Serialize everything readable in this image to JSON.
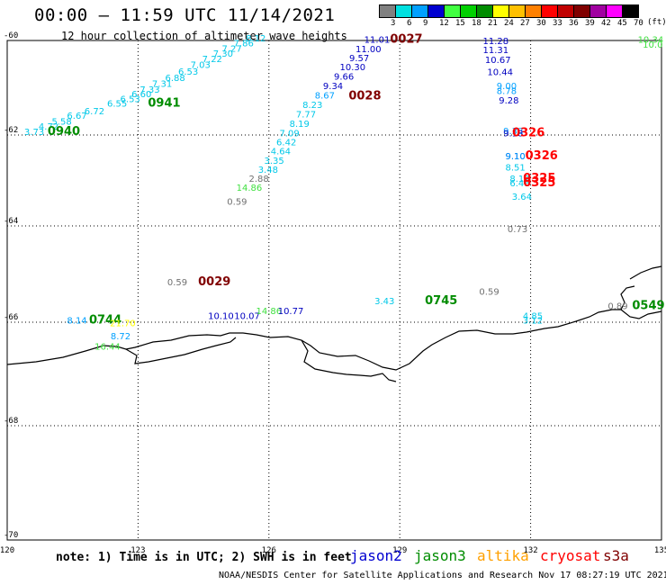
{
  "header": {
    "title": "00:00 – 11:59 UTC 11/14/2021",
    "subtitle": "12 hour collection of altimeter wave heights"
  },
  "legend": {
    "unit": "(ft)",
    "stops": [
      {
        "label": "3",
        "color": "#808080"
      },
      {
        "label": "6",
        "color": "#00e0e0"
      },
      {
        "label": "9",
        "color": "#00a0ff"
      },
      {
        "label": "12",
        "color": "#0000d0"
      },
      {
        "label": "15",
        "color": "#40ff40"
      },
      {
        "label": "18",
        "color": "#00d000"
      },
      {
        "label": "21",
        "color": "#008c00"
      },
      {
        "label": "24",
        "color": "#ffff00"
      },
      {
        "label": "27",
        "color": "#ffc000"
      },
      {
        "label": "30",
        "color": "#ff8000"
      },
      {
        "label": "33",
        "color": "#ff0000"
      },
      {
        "label": "36",
        "color": "#c00000"
      },
      {
        "label": "39",
        "color": "#800000"
      },
      {
        "label": "42",
        "color": "#a000a0"
      },
      {
        "label": "45",
        "color": "#ff00ff"
      },
      {
        "label": "70",
        "color": "#000000"
      }
    ]
  },
  "axes": {
    "lat_labels": [
      {
        "value": "-60",
        "lat": -60
      },
      {
        "value": "-62",
        "lat": -62
      },
      {
        "value": "-64",
        "lat": -64
      },
      {
        "value": "-66",
        "lat": -66
      },
      {
        "value": "-68",
        "lat": -68
      },
      {
        "value": "-70",
        "lat": -70
      }
    ],
    "lon_labels": [
      {
        "value": "120",
        "lon": 120
      },
      {
        "value": "123",
        "lon": 123
      },
      {
        "value": "126",
        "lon": 126
      },
      {
        "value": "129",
        "lon": 129
      },
      {
        "value": "132",
        "lon": 132
      },
      {
        "value": "135",
        "lon": 135
      }
    ]
  },
  "observations": [
    {
      "text": "8.12",
      "lon": 125.7,
      "lat": -60.02,
      "color": "#00c8e8"
    },
    {
      "text": "7.86",
      "lon": 125.42,
      "lat": -60.12,
      "color": "#00c8e8"
    },
    {
      "text": "7.27",
      "lon": 125.15,
      "lat": -60.24,
      "color": "#00c8e8"
    },
    {
      "text": "7.30",
      "lon": 124.95,
      "lat": -60.34,
      "color": "#00c8e8"
    },
    {
      "text": "7.22",
      "lon": 124.7,
      "lat": -60.46,
      "color": "#00c8e8"
    },
    {
      "text": "7.03",
      "lon": 124.43,
      "lat": -60.58,
      "color": "#00c8e8"
    },
    {
      "text": "6.53",
      "lon": 124.15,
      "lat": -60.72,
      "color": "#00c8e8"
    },
    {
      "text": "6.88",
      "lon": 123.85,
      "lat": -60.86,
      "color": "#00c8e8"
    },
    {
      "text": "7.31",
      "lon": 123.55,
      "lat": -60.98,
      "color": "#00c8e8"
    },
    {
      "text": "7.33",
      "lon": 123.27,
      "lat": -61.1,
      "color": "#00c8e8"
    },
    {
      "text": "6.60",
      "lon": 123.08,
      "lat": -61.2,
      "color": "#00c8e8"
    },
    {
      "text": "6.53",
      "lon": 122.82,
      "lat": -61.3,
      "color": "#00c8e8"
    },
    {
      "text": "6.55",
      "lon": 122.52,
      "lat": -61.4,
      "color": "#00c8e8"
    },
    {
      "text": "6.72",
      "lon": 122.0,
      "lat": -61.56,
      "color": "#00c8e8"
    },
    {
      "text": "6.67",
      "lon": 121.6,
      "lat": -61.66,
      "color": "#00c8e8"
    },
    {
      "text": "5.58",
      "lon": 121.25,
      "lat": -61.78,
      "color": "#00c8e8"
    },
    {
      "text": "4.72",
      "lon": 120.95,
      "lat": -61.89,
      "color": "#00c8e8"
    },
    {
      "text": "3.73",
      "lon": 120.62,
      "lat": -62.0,
      "color": "#00c8e8"
    },
    {
      "text": "0941",
      "lon": 123.6,
      "lat": -61.4,
      "color": "#008c00",
      "bold": true,
      "size": 13
    },
    {
      "text": "0940",
      "lon": 121.3,
      "lat": -62.0,
      "color": "#008c00",
      "bold": true,
      "size": 13
    },
    {
      "text": "11.01",
      "lon": 128.48,
      "lat": -60.05,
      "color": "#0000c0"
    },
    {
      "text": "11.00",
      "lon": 128.28,
      "lat": -60.25,
      "color": "#0000c0"
    },
    {
      "text": "9.57",
      "lon": 128.07,
      "lat": -60.44,
      "color": "#0000c0"
    },
    {
      "text": "10.30",
      "lon": 127.92,
      "lat": -60.63,
      "color": "#0000c0"
    },
    {
      "text": "9.66",
      "lon": 127.72,
      "lat": -60.83,
      "color": "#0000c0"
    },
    {
      "text": "9.34",
      "lon": 127.47,
      "lat": -61.03,
      "color": "#0000c0"
    },
    {
      "text": "8.67",
      "lon": 127.28,
      "lat": -61.23,
      "color": "#00a0ff"
    },
    {
      "text": "8.23",
      "lon": 127.0,
      "lat": -61.43,
      "color": "#00c8e8"
    },
    {
      "text": "7.77",
      "lon": 126.85,
      "lat": -61.63,
      "color": "#00c8e8"
    },
    {
      "text": "8.19",
      "lon": 126.7,
      "lat": -61.83,
      "color": "#00c8e8"
    },
    {
      "text": "7.09",
      "lon": 126.47,
      "lat": -62.03,
      "color": "#00c8e8"
    },
    {
      "text": "6.42",
      "lon": 126.4,
      "lat": -62.23,
      "color": "#00c8e8"
    },
    {
      "text": "4.64",
      "lon": 126.27,
      "lat": -62.43,
      "color": "#00c8e8"
    },
    {
      "text": "3.35",
      "lon": 126.12,
      "lat": -62.63,
      "color": "#00c8e8"
    },
    {
      "text": "3.48",
      "lon": 125.98,
      "lat": -62.83,
      "color": "#00c8e8"
    },
    {
      "text": "2.88",
      "lon": 125.77,
      "lat": -63.03,
      "color": "#707070"
    },
    {
      "text": "14.86",
      "lon": 125.55,
      "lat": -63.23,
      "color": "#40e040"
    },
    {
      "text": "0.59",
      "lon": 125.27,
      "lat": -63.53,
      "color": "#707070"
    },
    {
      "text": "0027",
      "lon": 129.15,
      "lat": -60.05,
      "color": "#800000",
      "bold": true,
      "size": 13
    },
    {
      "text": "0028",
      "lon": 128.2,
      "lat": -61.25,
      "color": "#800000",
      "bold": true,
      "size": 13
    },
    {
      "text": "11.28",
      "lon": 131.2,
      "lat": -60.08,
      "color": "#0000c0"
    },
    {
      "text": "11.31",
      "lon": 131.2,
      "lat": -60.27,
      "color": "#0000c0"
    },
    {
      "text": "10.67",
      "lon": 131.25,
      "lat": -60.48,
      "color": "#0000c0"
    },
    {
      "text": "10.44",
      "lon": 131.3,
      "lat": -60.73,
      "color": "#0000c0"
    },
    {
      "text": "9.00",
      "lon": 131.45,
      "lat": -61.03,
      "color": "#00a0ff"
    },
    {
      "text": "8.78",
      "lon": 131.45,
      "lat": -61.13,
      "color": "#00a0ff"
    },
    {
      "text": "9.28",
      "lon": 131.5,
      "lat": -61.33,
      "color": "#0000c0"
    },
    {
      "text": "9.38",
      "lon": 131.6,
      "lat": -61.98,
      "color": "#00a0ff"
    },
    {
      "text": "9.18",
      "lon": 131.6,
      "lat": -62.03,
      "color": "#0000c0"
    },
    {
      "text": "9.10",
      "lon": 131.65,
      "lat": -62.53,
      "color": "#0000c0"
    },
    {
      "text": "9.10",
      "lon": 131.65,
      "lat": -62.53,
      "color": "#00a0ff"
    },
    {
      "text": "8.51",
      "lon": 131.65,
      "lat": -62.78,
      "color": "#00c8e8"
    },
    {
      "text": "8.12",
      "lon": 131.75,
      "lat": -63.03,
      "color": "#00c8e8"
    },
    {
      "text": "6.48",
      "lon": 131.75,
      "lat": -63.13,
      "color": "#00c8e8"
    },
    {
      "text": "3.64",
      "lon": 131.8,
      "lat": -63.43,
      "color": "#00c8e8"
    },
    {
      "text": "0.73",
      "lon": 131.7,
      "lat": -64.13,
      "color": "#707070"
    },
    {
      "text": "0326",
      "lon": 131.95,
      "lat": -62.03,
      "color": "#ff0000",
      "bold": true,
      "size": 13
    },
    {
      "text": "0326",
      "lon": 132.25,
      "lat": -62.53,
      "color": "#ff0000",
      "bold": true,
      "size": 13
    },
    {
      "text": "0325",
      "lon": 132.2,
      "lat": -63.03,
      "color": "#ff0000",
      "bold": true,
      "size": 13
    },
    {
      "text": "0325",
      "lon": 132.2,
      "lat": -63.13,
      "color": "#ff0000",
      "bold": true,
      "size": 13
    },
    {
      "text": "0.59",
      "lon": 123.9,
      "lat": -65.23,
      "color": "#707070"
    },
    {
      "text": "0029",
      "lon": 124.75,
      "lat": -65.23,
      "color": "#800000",
      "bold": true,
      "size": 13
    },
    {
      "text": "3.43",
      "lon": 128.65,
      "lat": -65.63,
      "color": "#00c8e8"
    },
    {
      "text": "0745",
      "lon": 129.95,
      "lat": -65.63,
      "color": "#008c00",
      "bold": true,
      "size": 13
    },
    {
      "text": "0.59",
      "lon": 131.05,
      "lat": -65.43,
      "color": "#707070"
    },
    {
      "text": "10.10",
      "lon": 124.9,
      "lat": -65.93,
      "color": "#0000c0"
    },
    {
      "text": "10.07",
      "lon": 125.5,
      "lat": -65.93,
      "color": "#0000c0"
    },
    {
      "text": "14.86",
      "lon": 126.0,
      "lat": -65.83,
      "color": "#40e040"
    },
    {
      "text": "10.77",
      "lon": 126.5,
      "lat": -65.83,
      "color": "#0000c0"
    },
    {
      "text": "8.14",
      "lon": 121.6,
      "lat": -66.03,
      "color": "#00a0ff"
    },
    {
      "text": "0744",
      "lon": 122.25,
      "lat": -66.03,
      "color": "#008c00",
      "bold": true,
      "size": 13
    },
    {
      "text": "21.70",
      "lon": 122.65,
      "lat": -66.08,
      "color": "#ffff00"
    },
    {
      "text": "8.72",
      "lon": 122.6,
      "lat": -66.33,
      "color": "#00a0ff"
    },
    {
      "text": "16.44",
      "lon": 122.3,
      "lat": -66.53,
      "color": "#40e040"
    },
    {
      "text": "4.85",
      "lon": 132.05,
      "lat": -65.93,
      "color": "#00c8e8"
    },
    {
      "text": "3.12",
      "lon": 132.05,
      "lat": -66.03,
      "color": "#00c8e8"
    },
    {
      "text": "0.89",
      "lon": 134.0,
      "lat": -65.73,
      "color": "#707070"
    },
    {
      "text": "0549",
      "lon": 134.7,
      "lat": -65.73,
      "color": "#008c00",
      "bold": true,
      "size": 13
    },
    {
      "text": "10.34",
      "lon": 134.75,
      "lat": -60.05,
      "color": "#40e040"
    },
    {
      "text": "10.0",
      "lon": 134.8,
      "lat": -60.15,
      "color": "#40e040"
    }
  ],
  "footer": {
    "note": "note: 1) Time is in UTC; 2) SWH is in feet",
    "satellites": [
      {
        "name": "jason2",
        "color": "#0000d0"
      },
      {
        "name": "jason3",
        "color": "#008c00"
      },
      {
        "name": "altika",
        "color": "#ffa000"
      },
      {
        "name": "cryosat",
        "color": "#ff0000"
      },
      {
        "name": "s3a",
        "color": "#800000"
      }
    ],
    "credit": "NOAA/NESDIS Center for Satellite Applications and Research   Nov 17 08:27:19 UTC 2021"
  }
}
